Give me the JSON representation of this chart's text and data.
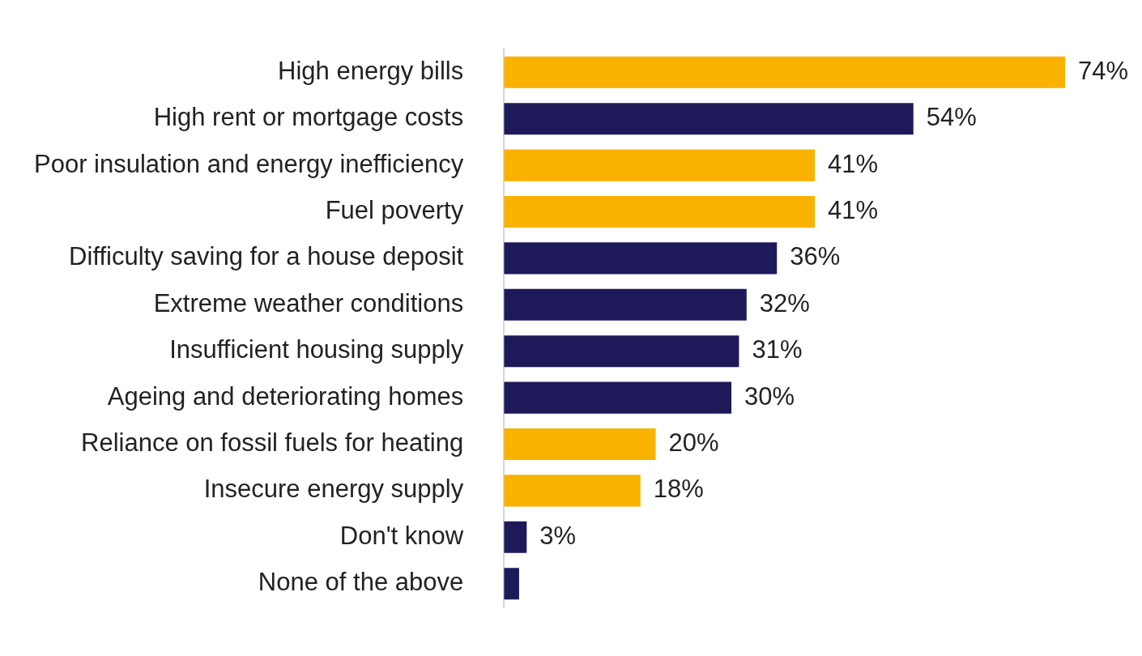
{
  "chart_data": {
    "type": "bar",
    "orientation": "horizontal",
    "categories": [
      "High energy bills",
      "High rent or mortgage costs",
      "Poor insulation and energy inefficiency",
      "Fuel poverty",
      "Difficulty saving for a house deposit",
      "Extreme weather conditions",
      "Insufficient housing supply",
      "Ageing and deteriorating homes",
      "Reliance on fossil fuels for heating",
      "Insecure energy supply",
      "Don't know",
      "None of the above"
    ],
    "values": [
      74,
      54,
      41,
      41,
      36,
      32,
      31,
      30,
      20,
      18,
      3,
      2
    ],
    "colors": [
      "#f9b200",
      "#1e1a5a",
      "#f9b200",
      "#f9b200",
      "#1e1a5a",
      "#1e1a5a",
      "#1e1a5a",
      "#1e1a5a",
      "#f9b200",
      "#f9b200",
      "#1e1a5a",
      "#1e1a5a"
    ],
    "value_labels": [
      "74%",
      "54%",
      "41%",
      "41%",
      "36%",
      "32%",
      "31%",
      "30%",
      "20%",
      "18%",
      "3%",
      null
    ],
    "tick_labels": "y",
    "legend": false
  }
}
